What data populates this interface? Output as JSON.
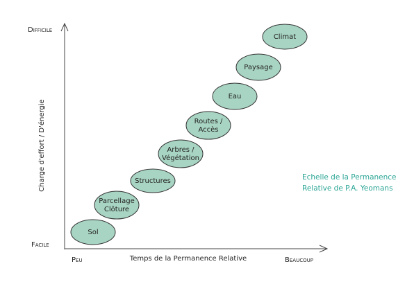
{
  "axes": {
    "y_top": "Difficile",
    "y_bottom": "Facile",
    "y_title": "Charge d'effort / D'énergie",
    "x_left": "Peu",
    "x_right": "Beaucoup",
    "x_title": "Temps de la Permanence Relative"
  },
  "nodes": [
    {
      "lines": [
        "Sol"
      ]
    },
    {
      "lines": [
        "Parcellage",
        "Clôture"
      ]
    },
    {
      "lines": [
        "Structures"
      ]
    },
    {
      "lines": [
        "Arbres /",
        "Végétation"
      ]
    },
    {
      "lines": [
        "Routes /",
        "Accès"
      ]
    },
    {
      "lines": [
        "Eau"
      ]
    },
    {
      "lines": [
        "Paysage"
      ]
    },
    {
      "lines": [
        "Climat"
      ]
    }
  ],
  "caption": [
    "Echelle de la Permanence",
    "Relative de P.A. Yeomans"
  ]
}
